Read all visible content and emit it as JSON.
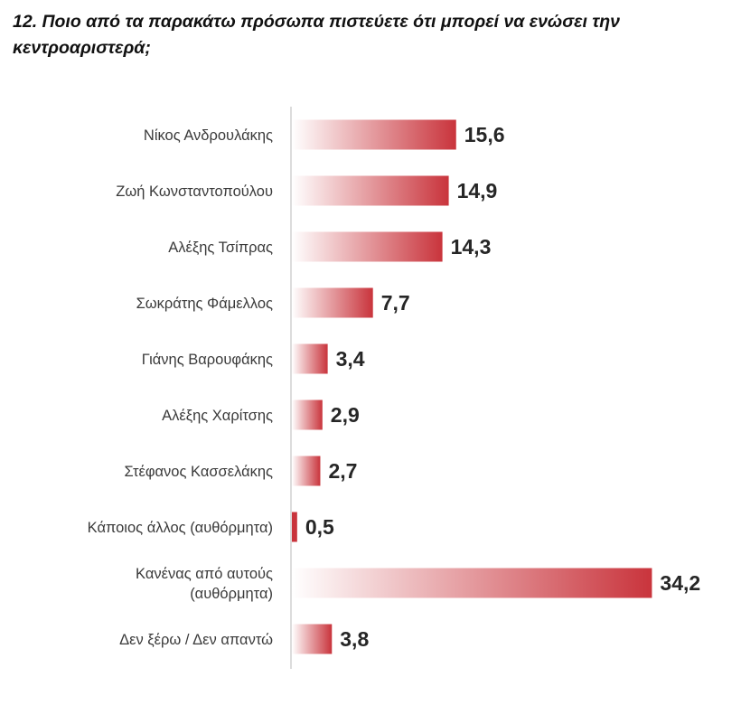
{
  "title": "12. Ποιο από τα παρακάτω πρόσωπα πιστεύετε ότι μπορεί να ενώσει την κεντροαριστερά;",
  "colors": {
    "bar_start": "#ffffff",
    "bar_end": "#c9343c",
    "axis": "#d0d0d0"
  },
  "chart_data": {
    "type": "bar",
    "orientation": "horizontal",
    "categories": [
      [
        "Νίκος Ανδρουλάκης"
      ],
      [
        "Ζωή Κωνσταντοπούλου"
      ],
      [
        "Αλέξης Τσίπρας"
      ],
      [
        "Σωκράτης Φάμελλος"
      ],
      [
        "Γιάνης Βαρουφάκης"
      ],
      [
        "Αλέξης Χαρίτσης"
      ],
      [
        "Στέφανος Κασσελάκης"
      ],
      [
        "Κάποιος άλλος (αυθόρμητα)"
      ],
      [
        "Κανένας από αυτούς",
        "(αυθόρμητα)"
      ],
      [
        "Δεν ξέρω / Δεν απαντώ"
      ]
    ],
    "values": [
      15.6,
      14.9,
      14.3,
      7.7,
      3.4,
      2.9,
      2.7,
      0.5,
      34.2,
      3.8
    ],
    "value_labels": [
      "15,6",
      "14,9",
      "14,3",
      "7,7",
      "3,4",
      "2,9",
      "2,7",
      "0,5",
      "34,2",
      "3,8"
    ],
    "grid": false,
    "legend": "none"
  }
}
